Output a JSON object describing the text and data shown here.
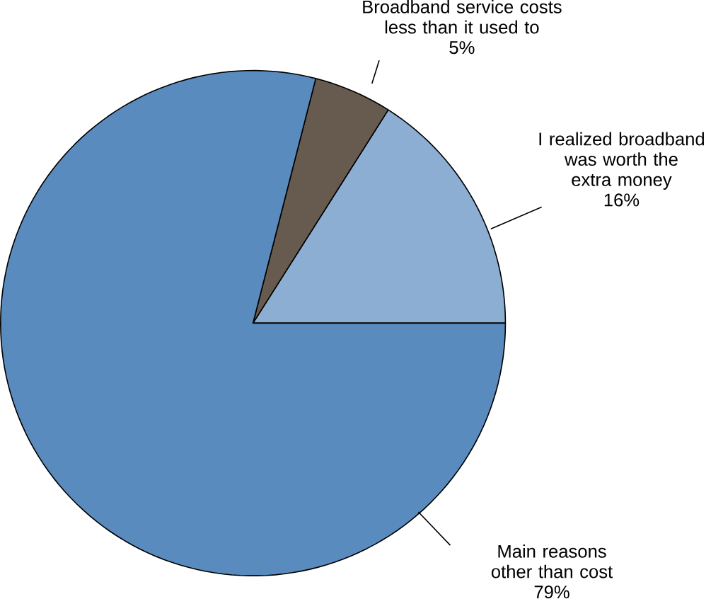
{
  "chart_data": {
    "type": "pie",
    "categories": [
      "I realized broadband was worth the extra money",
      "Broadband service costs less than it used to",
      "Main reasons other than cost"
    ],
    "values": [
      16,
      5,
      79
    ],
    "value_labels": [
      "16%",
      "5%",
      "79%"
    ],
    "colors": [
      "#8caed3",
      "#675b4f",
      "#5a8bbf"
    ]
  }
}
